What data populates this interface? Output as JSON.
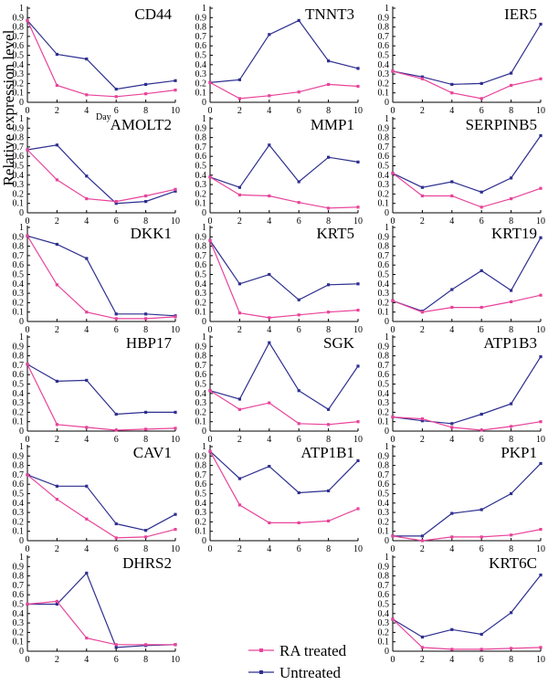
{
  "figure": {
    "y_axis_label": "Relative expression level",
    "day_label": "Day"
  },
  "legend": {
    "ra_label": "RA treated",
    "untreated_label": "Untreated"
  },
  "colors": {
    "ra_treated": "#e8439a",
    "untreated": "#2e2f8f"
  },
  "chart_data": [
    {
      "type": "line",
      "title": "CD44",
      "x": [
        0,
        2,
        4,
        6,
        8,
        10
      ],
      "xticks": [
        "0",
        "2",
        "4",
        "6",
        "8",
        "10"
      ],
      "yticks": [
        "0",
        "0.1",
        "0.2",
        "0.3",
        "0.4",
        "0.5",
        "0.6",
        "0.7",
        "0.8",
        "0.9",
        "1"
      ],
      "ylim": [
        0,
        1
      ],
      "xlim": [
        0,
        10
      ],
      "grid": false,
      "series": [
        {
          "name": "RA treated",
          "values": [
            0.87,
            0.18,
            0.08,
            0.06,
            0.09,
            0.13
          ]
        },
        {
          "name": "Untreated",
          "values": [
            0.87,
            0.51,
            0.46,
            0.14,
            0.19,
            0.23
          ]
        }
      ]
    },
    {
      "type": "line",
      "title": "TNNT3",
      "x": [
        0,
        2,
        4,
        6,
        8,
        10
      ],
      "xticks": [
        "0",
        "2",
        "4",
        "6",
        "8",
        "10"
      ],
      "yticks": [
        "0",
        "0.1",
        "0.2",
        "0.3",
        "0.4",
        "0.5",
        "0.6",
        "0.7",
        "0.8",
        "0.9",
        "1"
      ],
      "ylim": [
        0,
        1
      ],
      "xlim": [
        0,
        10
      ],
      "grid": false,
      "series": [
        {
          "name": "RA treated",
          "values": [
            0.21,
            0.04,
            0.07,
            0.11,
            0.19,
            0.17
          ]
        },
        {
          "name": "Untreated",
          "values": [
            0.21,
            0.24,
            0.72,
            0.87,
            0.44,
            0.36
          ]
        }
      ]
    },
    {
      "type": "line",
      "title": "IER5",
      "x": [
        0,
        2,
        4,
        6,
        8,
        10
      ],
      "xticks": [
        "0",
        "2",
        "4",
        "6",
        "8",
        "10"
      ],
      "yticks": [
        "0",
        "0.1",
        "0.2",
        "0.3",
        "0.4",
        "0.5",
        "0.6",
        "0.7",
        "0.8",
        "0.9",
        "1"
      ],
      "ylim": [
        0,
        1
      ],
      "xlim": [
        0,
        10
      ],
      "grid": false,
      "series": [
        {
          "name": "RA treated",
          "values": [
            0.33,
            0.25,
            0.1,
            0.04,
            0.18,
            0.25
          ]
        },
        {
          "name": "Untreated",
          "values": [
            0.33,
            0.27,
            0.19,
            0.2,
            0.31,
            0.83
          ]
        }
      ]
    },
    {
      "type": "line",
      "title": "AMOLT2",
      "x": [
        0,
        2,
        4,
        6,
        8,
        10
      ],
      "xticks": [
        "0",
        "2",
        "4",
        "6",
        "8",
        "10"
      ],
      "yticks": [
        "0",
        "0.1",
        "0.2",
        "0.3",
        "0.4",
        "0.5",
        "0.6",
        "0.7",
        "0.8",
        "0.9",
        "1"
      ],
      "ylim": [
        0,
        1
      ],
      "xlim": [
        0,
        10
      ],
      "grid": false,
      "series": [
        {
          "name": "RA treated",
          "values": [
            0.67,
            0.35,
            0.15,
            0.12,
            0.18,
            0.25
          ]
        },
        {
          "name": "Untreated",
          "values": [
            0.67,
            0.72,
            0.39,
            0.1,
            0.12,
            0.23
          ]
        }
      ]
    },
    {
      "type": "line",
      "title": "MMP1",
      "x": [
        0,
        2,
        4,
        6,
        8,
        10
      ],
      "xticks": [
        "0",
        "2",
        "4",
        "6",
        "8",
        "10"
      ],
      "yticks": [
        "0",
        "0.1",
        "0.2",
        "0.3",
        "0.4",
        "0.5",
        "0.6",
        "0.7",
        "0.8",
        "0.9",
        "1"
      ],
      "ylim": [
        0,
        1
      ],
      "xlim": [
        0,
        10
      ],
      "grid": false,
      "series": [
        {
          "name": "RA treated",
          "values": [
            0.38,
            0.19,
            0.18,
            0.11,
            0.05,
            0.06
          ]
        },
        {
          "name": "Untreated",
          "values": [
            0.38,
            0.27,
            0.72,
            0.33,
            0.59,
            0.54
          ]
        }
      ]
    },
    {
      "type": "line",
      "title": "SERPINB5",
      "x": [
        0,
        2,
        4,
        6,
        8,
        10
      ],
      "xticks": [
        "0",
        "2",
        "4",
        "6",
        "8",
        "10"
      ],
      "yticks": [
        "0",
        "0.1",
        "0.2",
        "0.3",
        "0.4",
        "0.5",
        "0.6",
        "0.7",
        "0.8",
        "0.9",
        "1"
      ],
      "ylim": [
        0,
        1
      ],
      "xlim": [
        0,
        10
      ],
      "grid": false,
      "series": [
        {
          "name": "RA treated",
          "values": [
            0.42,
            0.18,
            0.18,
            0.06,
            0.15,
            0.26
          ]
        },
        {
          "name": "Untreated",
          "values": [
            0.42,
            0.27,
            0.33,
            0.22,
            0.37,
            0.82
          ]
        }
      ]
    },
    {
      "type": "line",
      "title": "DKK1",
      "x": [
        0,
        2,
        4,
        6,
        8,
        10
      ],
      "xticks": [
        "0",
        "2",
        "4",
        "6",
        "8",
        "10"
      ],
      "yticks": [
        "0",
        "0.1",
        "0.2",
        "0.3",
        "0.4",
        "0.5",
        "0.6",
        "0.7",
        "0.8",
        "0.9",
        "1"
      ],
      "ylim": [
        0,
        1
      ],
      "xlim": [
        0,
        10
      ],
      "grid": false,
      "series": [
        {
          "name": "RA treated",
          "values": [
            0.91,
            0.39,
            0.1,
            0.03,
            0.03,
            0.05
          ]
        },
        {
          "name": "Untreated",
          "values": [
            0.91,
            0.82,
            0.67,
            0.08,
            0.08,
            0.06
          ]
        }
      ]
    },
    {
      "type": "line",
      "title": "KRT5",
      "x": [
        0,
        2,
        4,
        6,
        8,
        10
      ],
      "xticks": [
        "0",
        "2",
        "4",
        "6",
        "8",
        "10"
      ],
      "yticks": [
        "0",
        "0.1",
        "0.2",
        "0.3",
        "0.4",
        "0.5",
        "0.6",
        "0.7",
        "0.8",
        "0.9",
        "1"
      ],
      "ylim": [
        0,
        1
      ],
      "xlim": [
        0,
        10
      ],
      "grid": false,
      "series": [
        {
          "name": "RA treated",
          "values": [
            0.86,
            0.09,
            0.04,
            0.07,
            0.1,
            0.12
          ]
        },
        {
          "name": "Untreated",
          "values": [
            0.86,
            0.4,
            0.5,
            0.23,
            0.39,
            0.4
          ]
        }
      ]
    },
    {
      "type": "line",
      "title": "KRT19",
      "x": [
        0,
        2,
        4,
        6,
        8,
        10
      ],
      "xticks": [
        "0",
        "2",
        "4",
        "6",
        "8",
        "10"
      ],
      "yticks": [
        "0",
        "0.1",
        "0.2",
        "0.3",
        "0.4",
        "0.5",
        "0.6",
        "0.7",
        "0.8",
        "0.9",
        "1"
      ],
      "ylim": [
        0,
        1
      ],
      "xlim": [
        0,
        10
      ],
      "grid": false,
      "series": [
        {
          "name": "RA treated",
          "values": [
            0.22,
            0.1,
            0.15,
            0.15,
            0.21,
            0.28
          ]
        },
        {
          "name": "Untreated",
          "values": [
            0.22,
            0.11,
            0.34,
            0.54,
            0.33,
            0.89
          ]
        }
      ]
    },
    {
      "type": "line",
      "title": "HBP17",
      "x": [
        0,
        2,
        4,
        6,
        8,
        10
      ],
      "xticks": [
        "0",
        "2",
        "4",
        "6",
        "8",
        "10"
      ],
      "yticks": [
        "0",
        "0.1",
        "0.2",
        "0.3",
        "0.4",
        "0.5",
        "0.6",
        "0.7",
        "0.8",
        "0.9",
        "1"
      ],
      "ylim": [
        0,
        1
      ],
      "xlim": [
        0,
        10
      ],
      "grid": false,
      "series": [
        {
          "name": "RA treated",
          "values": [
            0.71,
            0.07,
            0.04,
            0.01,
            0.02,
            0.03
          ]
        },
        {
          "name": "Untreated",
          "values": [
            0.71,
            0.53,
            0.54,
            0.18,
            0.2,
            0.2
          ]
        }
      ]
    },
    {
      "type": "line",
      "title": "SGK",
      "x": [
        0,
        2,
        4,
        6,
        8,
        10
      ],
      "xticks": [
        "0",
        "2",
        "4",
        "6",
        "8",
        "10"
      ],
      "yticks": [
        "0",
        "0.1",
        "0.2",
        "0.3",
        "0.4",
        "0.5",
        "0.6",
        "0.7",
        "0.8",
        "0.9",
        "1"
      ],
      "ylim": [
        0,
        1
      ],
      "xlim": [
        0,
        10
      ],
      "grid": false,
      "series": [
        {
          "name": "RA treated",
          "values": [
            0.43,
            0.23,
            0.3,
            0.08,
            0.07,
            0.1
          ]
        },
        {
          "name": "Untreated",
          "values": [
            0.43,
            0.34,
            0.94,
            0.43,
            0.23,
            0.69
          ]
        }
      ]
    },
    {
      "type": "line",
      "title": "ATP1B3",
      "x": [
        0,
        2,
        4,
        6,
        8,
        10
      ],
      "xticks": [
        "0",
        "2",
        "4",
        "6",
        "8",
        "10"
      ],
      "yticks": [
        "0",
        "0.1",
        "0.2",
        "0.3",
        "0.4",
        "0.5",
        "0.6",
        "0.7",
        "0.8",
        "0.9",
        "1"
      ],
      "ylim": [
        0,
        1
      ],
      "xlim": [
        0,
        10
      ],
      "grid": false,
      "series": [
        {
          "name": "RA treated",
          "values": [
            0.15,
            0.13,
            0.04,
            0.01,
            0.05,
            0.1
          ]
        },
        {
          "name": "Untreated",
          "values": [
            0.15,
            0.11,
            0.08,
            0.18,
            0.29,
            0.79
          ]
        }
      ]
    },
    {
      "type": "line",
      "title": "CAV1",
      "x": [
        0,
        2,
        4,
        6,
        8,
        10
      ],
      "xticks": [
        "0",
        "2",
        "4",
        "6",
        "8",
        "10"
      ],
      "yticks": [
        "0",
        "0.1",
        "0.2",
        "0.3",
        "0.4",
        "0.5",
        "0.6",
        "0.7",
        "0.8",
        "0.9",
        "1"
      ],
      "ylim": [
        0,
        1
      ],
      "xlim": [
        0,
        10
      ],
      "grid": false,
      "series": [
        {
          "name": "RA treated",
          "values": [
            0.7,
            0.44,
            0.23,
            0.03,
            0.04,
            0.12
          ]
        },
        {
          "name": "Untreated",
          "values": [
            0.7,
            0.58,
            0.58,
            0.18,
            0.11,
            0.28
          ]
        }
      ]
    },
    {
      "type": "line",
      "title": "ATP1B1",
      "x": [
        0,
        2,
        4,
        6,
        8,
        10
      ],
      "xticks": [
        "0",
        "2",
        "4",
        "6",
        "8",
        "10"
      ],
      "yticks": [
        "0",
        "0.1",
        "0.2",
        "0.3",
        "0.4",
        "0.5",
        "0.6",
        "0.7",
        "0.8",
        "0.9",
        "1"
      ],
      "ylim": [
        0,
        1
      ],
      "xlim": [
        0,
        10
      ],
      "grid": false,
      "series": [
        {
          "name": "RA treated",
          "values": [
            0.95,
            0.38,
            0.19,
            0.19,
            0.21,
            0.34
          ]
        },
        {
          "name": "Untreated",
          "values": [
            0.95,
            0.66,
            0.79,
            0.51,
            0.53,
            0.85
          ]
        }
      ]
    },
    {
      "type": "line",
      "title": "PKP1",
      "x": [
        0,
        2,
        4,
        6,
        8,
        10
      ],
      "xticks": [
        "0",
        "2",
        "4",
        "6",
        "8",
        "10"
      ],
      "yticks": [
        "0",
        "0.1",
        "0.2",
        "0.3",
        "0.4",
        "0.5",
        "0.6",
        "0.7",
        "0.8",
        "0.9",
        "1"
      ],
      "ylim": [
        0,
        1
      ],
      "xlim": [
        0,
        10
      ],
      "grid": false,
      "series": [
        {
          "name": "RA treated",
          "values": [
            0.05,
            0.0,
            0.04,
            0.04,
            0.06,
            0.12
          ]
        },
        {
          "name": "Untreated",
          "values": [
            0.05,
            0.05,
            0.29,
            0.33,
            0.5,
            0.82
          ]
        }
      ]
    },
    {
      "type": "line",
      "title": "DHRS2",
      "x": [
        0,
        2,
        4,
        6,
        8,
        10
      ],
      "xticks": [
        "0",
        "2",
        "4",
        "6",
        "8",
        "10"
      ],
      "yticks": [
        "0",
        "0.1",
        "0.2",
        "0.3",
        "0.4",
        "0.5",
        "0.6",
        "0.7",
        "0.8",
        "0.9",
        "1"
      ],
      "ylim": [
        0,
        1
      ],
      "xlim": [
        0,
        10
      ],
      "grid": false,
      "series": [
        {
          "name": "RA treated",
          "values": [
            0.5,
            0.53,
            0.14,
            0.07,
            0.07,
            0.07
          ]
        },
        {
          "name": "Untreated",
          "values": [
            0.5,
            0.5,
            0.83,
            0.04,
            0.06,
            0.07
          ]
        }
      ]
    },
    {
      "type": "line",
      "title": "KRT6C",
      "x": [
        0,
        2,
        4,
        6,
        8,
        10
      ],
      "xticks": [
        "0",
        "2",
        "4",
        "6",
        "8",
        "10"
      ],
      "yticks": [
        "0",
        "0.1",
        "0.2",
        "0.3",
        "0.4",
        "0.5",
        "0.6",
        "0.7",
        "0.8",
        "0.9",
        "1"
      ],
      "ylim": [
        0,
        1
      ],
      "xlim": [
        0,
        10
      ],
      "grid": false,
      "series": [
        {
          "name": "RA treated",
          "values": [
            0.34,
            0.04,
            0.02,
            0.02,
            0.03,
            0.04
          ]
        },
        {
          "name": "Untreated",
          "values": [
            0.34,
            0.15,
            0.23,
            0.18,
            0.41,
            0.81
          ]
        }
      ]
    }
  ]
}
